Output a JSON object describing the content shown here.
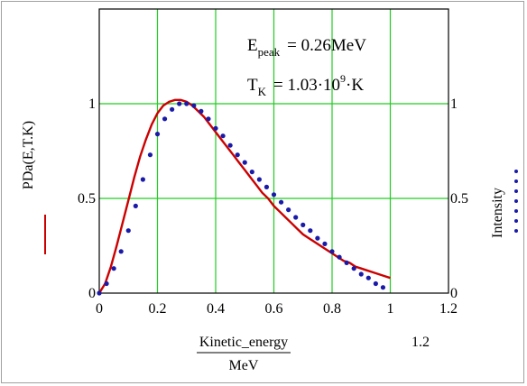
{
  "chart_data": {
    "type": "line",
    "xlim": [
      0,
      1.2
    ],
    "ylim": [
      0,
      1.5
    ],
    "xticks": [
      "0",
      "0.2",
      "0.4",
      "0.6",
      "0.8",
      "1",
      "1.2"
    ],
    "yticks_left": [
      "0",
      "0.5",
      "1"
    ],
    "yticks_right": [
      "0",
      "0.5",
      "1"
    ],
    "xlabel_numerator": "Kinetic_energy",
    "xlabel_denominator": "MeV",
    "xlabel_extra": "1.2",
    "ylabel_left": "PDa(E,T.K)",
    "ylabel_right": "Intensity",
    "grid": true,
    "annotations": {
      "epeak_main": "E",
      "epeak_sub": "peak",
      "epeak_value": "= 0.26MeV",
      "tk_main": "T",
      "tk_sub": "K",
      "tk_value_pre": "= 1.03·10",
      "tk_value_exp": "9",
      "tk_value_post": "·K"
    },
    "series": [
      {
        "style": "line",
        "color": "#cc0000",
        "x": [
          0,
          0.02,
          0.04,
          0.06,
          0.08,
          0.1,
          0.12,
          0.14,
          0.16,
          0.18,
          0.2,
          0.22,
          0.24,
          0.26,
          0.28,
          0.3,
          0.32,
          0.34,
          0.36,
          0.38,
          0.4,
          0.42,
          0.44,
          0.46,
          0.48,
          0.5,
          0.52,
          0.54,
          0.56,
          0.58,
          0.6,
          0.62,
          0.64,
          0.66,
          0.68,
          0.7,
          0.72,
          0.74,
          0.76,
          0.78,
          0.8,
          0.82,
          0.84,
          0.86,
          0.88,
          0.9,
          0.92,
          0.94,
          0.96,
          0.98,
          1.0
        ],
        "y": [
          0,
          0.05,
          0.14,
          0.25,
          0.37,
          0.49,
          0.61,
          0.72,
          0.81,
          0.89,
          0.95,
          0.99,
          1.01,
          1.02,
          1.02,
          1.01,
          0.99,
          0.96,
          0.93,
          0.89,
          0.85,
          0.81,
          0.77,
          0.73,
          0.69,
          0.65,
          0.61,
          0.57,
          0.53,
          0.5,
          0.46,
          0.43,
          0.4,
          0.37,
          0.34,
          0.31,
          0.29,
          0.27,
          0.25,
          0.23,
          0.21,
          0.19,
          0.17,
          0.16,
          0.14,
          0.13,
          0.12,
          0.11,
          0.1,
          0.09,
          0.08
        ]
      },
      {
        "style": "dots",
        "color": "#1a1aa8",
        "x": [
          0.0,
          0.025,
          0.05,
          0.075,
          0.1,
          0.125,
          0.15,
          0.175,
          0.2,
          0.225,
          0.25,
          0.275,
          0.3,
          0.325,
          0.35,
          0.375,
          0.4,
          0.425,
          0.45,
          0.475,
          0.5,
          0.525,
          0.55,
          0.575,
          0.6,
          0.625,
          0.65,
          0.675,
          0.7,
          0.725,
          0.75,
          0.775,
          0.8,
          0.825,
          0.85,
          0.875,
          0.9,
          0.925,
          0.95,
          0.975
        ],
        "y": [
          0.0,
          0.05,
          0.13,
          0.22,
          0.33,
          0.46,
          0.6,
          0.73,
          0.84,
          0.92,
          0.97,
          1.0,
          1.0,
          0.99,
          0.96,
          0.92,
          0.87,
          0.83,
          0.78,
          0.73,
          0.69,
          0.64,
          0.6,
          0.56,
          0.52,
          0.48,
          0.44,
          0.4,
          0.36,
          0.33,
          0.29,
          0.26,
          0.22,
          0.19,
          0.16,
          0.13,
          0.1,
          0.08,
          0.05,
          0.03
        ]
      }
    ]
  }
}
